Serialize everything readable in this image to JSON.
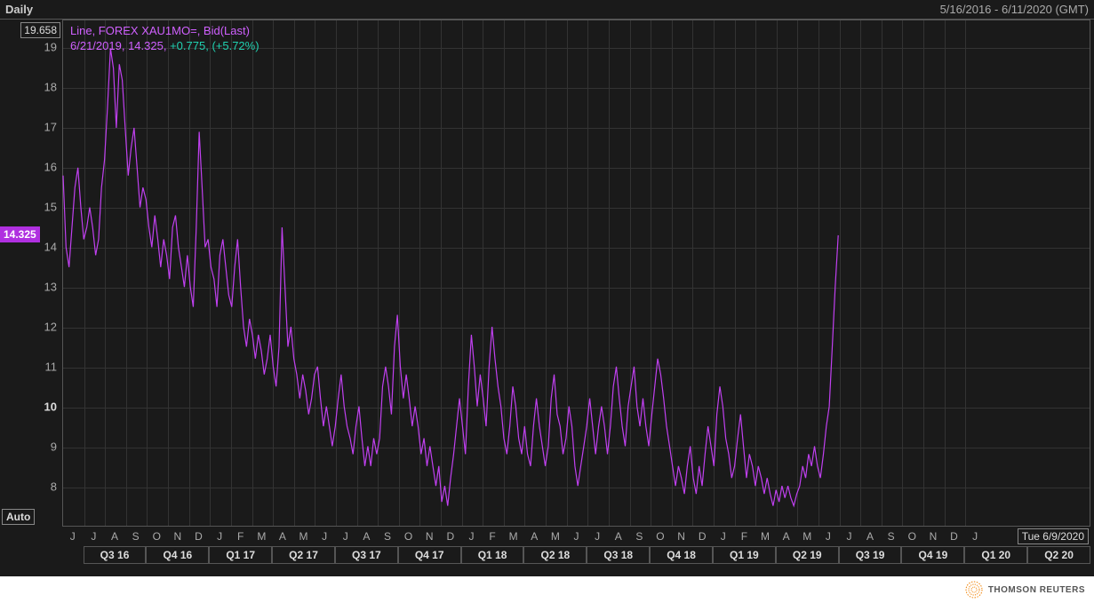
{
  "header": {
    "title": "Daily",
    "date_range": "5/16/2016 - 6/11/2020 (GMT)"
  },
  "legend": {
    "line1": "Line, FOREX XAU1MO=, Bid(Last)",
    "date": "6/21/2019",
    "value": "14.325",
    "change": "+0.775",
    "pct": "(+5.72%)"
  },
  "chart": {
    "type": "line",
    "line_color": "#c040f0",
    "line_width": 1.2,
    "background_color": "#1a1a1a",
    "grid_color": "#333333",
    "axis_text_color": "#aaaaaa",
    "ylim": [
      7.0,
      19.7
    ],
    "yticks": [
      8,
      9,
      10,
      11,
      12,
      13,
      14,
      15,
      16,
      17,
      18,
      19
    ],
    "ytick_bold": 10,
    "y_top_box": "19.658",
    "y_current_marker": "14.325",
    "y_auto_label": "Auto",
    "x_date_box": "Tue 6/9/2020",
    "months": [
      "J",
      "J",
      "A",
      "S",
      "O",
      "N",
      "D",
      "J",
      "F",
      "M",
      "A",
      "M",
      "J",
      "J",
      "A",
      "S",
      "O",
      "N",
      "D",
      "J",
      "F",
      "M",
      "A",
      "M",
      "J",
      "J",
      "A",
      "S",
      "O",
      "N",
      "D",
      "J",
      "F",
      "M",
      "A",
      "M",
      "J",
      "J",
      "A",
      "S",
      "O",
      "N",
      "D",
      "J"
    ],
    "quarters": [
      "Q3 16",
      "Q4 16",
      "Q1 17",
      "Q2 17",
      "Q3 17",
      "Q4 17",
      "Q1 18",
      "Q2 18",
      "Q3 18",
      "Q4 18",
      "Q1 19",
      "Q2 19",
      "Q3 19",
      "Q4 19",
      "Q1 20",
      "Q2 20"
    ],
    "x_span_months": 49,
    "data_end_month_index": 37,
    "series": [
      15.8,
      14.0,
      13.5,
      14.5,
      15.5,
      16.0,
      15.0,
      14.2,
      14.5,
      15.0,
      14.5,
      13.8,
      14.2,
      15.5,
      16.2,
      17.5,
      19.0,
      18.5,
      17.0,
      18.6,
      18.2,
      17.0,
      15.8,
      16.5,
      17.0,
      16.0,
      15.0,
      15.5,
      15.2,
      14.5,
      14.0,
      14.8,
      14.2,
      13.5,
      14.2,
      13.8,
      13.2,
      14.5,
      14.8,
      14.0,
      13.5,
      13.0,
      13.8,
      13.0,
      12.5,
      14.5,
      16.9,
      15.5,
      14.0,
      14.2,
      13.5,
      13.2,
      12.5,
      13.8,
      14.2,
      13.5,
      12.8,
      12.5,
      13.5,
      14.2,
      13.0,
      12.0,
      11.5,
      12.2,
      11.8,
      11.2,
      11.8,
      11.4,
      10.8,
      11.2,
      11.8,
      11.0,
      10.5,
      11.5,
      14.5,
      13.0,
      11.5,
      12.0,
      11.2,
      10.8,
      10.2,
      10.8,
      10.4,
      9.8,
      10.2,
      10.8,
      11.0,
      10.2,
      9.5,
      10.0,
      9.5,
      9.0,
      9.5,
      10.2,
      10.8,
      10.0,
      9.5,
      9.2,
      8.8,
      9.5,
      10.0,
      9.2,
      8.5,
      9.0,
      8.5,
      9.2,
      8.8,
      9.2,
      10.5,
      11.0,
      10.5,
      9.8,
      11.5,
      12.3,
      11.0,
      10.2,
      10.8,
      10.2,
      9.5,
      10.0,
      9.5,
      8.8,
      9.2,
      8.5,
      9.0,
      8.5,
      8.0,
      8.5,
      7.6,
      8.0,
      7.5,
      8.2,
      8.8,
      9.5,
      10.2,
      9.5,
      8.8,
      10.5,
      11.8,
      11.0,
      10.0,
      10.8,
      10.2,
      9.5,
      11.0,
      12.0,
      11.2,
      10.5,
      10.0,
      9.2,
      8.8,
      9.5,
      10.5,
      10.0,
      9.2,
      8.8,
      9.5,
      8.8,
      8.5,
      9.5,
      10.2,
      9.5,
      9.0,
      8.5,
      9.0,
      10.2,
      10.8,
      9.8,
      9.5,
      8.8,
      9.2,
      10.0,
      9.5,
      8.5,
      8.0,
      8.5,
      9.0,
      9.5,
      10.2,
      9.5,
      8.8,
      9.5,
      10.0,
      9.5,
      8.8,
      9.5,
      10.5,
      11.0,
      10.2,
      9.5,
      9.0,
      10.0,
      10.5,
      11.0,
      10.0,
      9.5,
      10.2,
      9.5,
      9.0,
      9.8,
      10.5,
      11.2,
      10.8,
      10.2,
      9.5,
      9.0,
      8.5,
      8.0,
      8.5,
      8.2,
      7.8,
      8.5,
      9.0,
      8.2,
      7.8,
      8.5,
      8.0,
      8.8,
      9.5,
      9.0,
      8.5,
      9.8,
      10.5,
      10.0,
      9.2,
      8.8,
      8.2,
      8.5,
      9.2,
      9.8,
      9.0,
      8.2,
      8.8,
      8.5,
      8.0,
      8.5,
      8.2,
      7.8,
      8.2,
      7.8,
      7.5,
      7.9,
      7.6,
      8.0,
      7.7,
      8.0,
      7.7,
      7.5,
      7.8,
      8.0,
      8.5,
      8.2,
      8.8,
      8.5,
      9.0,
      8.5,
      8.2,
      8.8,
      9.5,
      10.0,
      11.5,
      13.0,
      14.3
    ]
  },
  "footer": {
    "brand": "THOMSON REUTERS"
  }
}
